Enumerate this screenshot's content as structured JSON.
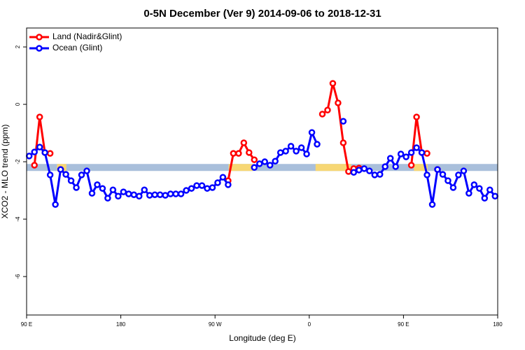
{
  "chart_data": {
    "type": "line",
    "title": "0-5N December (Ver 9)   2014-09-06 to 2018-12-31",
    "x_label": "Longitude (deg E)",
    "y_label": "XCO2 - MLO trend (ppm)",
    "x": [
      92.5,
      97.5,
      102.5,
      107.5,
      112.5,
      117.5,
      122.5,
      127.5,
      132.5,
      137.5,
      142.5,
      147.5,
      152.5,
      157.5,
      162.5,
      167.5,
      172.5,
      177.5,
      182.5,
      187.5,
      192.5,
      197.5,
      202.5,
      207.5,
      212.5,
      217.5,
      222.5,
      227.5,
      232.5,
      237.5,
      242.5,
      247.5,
      252.5,
      257.5,
      262.5,
      267.5,
      272.5,
      277.5,
      282.5,
      287.5,
      292.5,
      297.5,
      302.5,
      307.5,
      312.5,
      317.5,
      322.5,
      327.5,
      332.5,
      337.5,
      342.5,
      347.5,
      352.5,
      357.5,
      362.5,
      367.5,
      372.5,
      377.5,
      382.5,
      387.5,
      392.5,
      397.5,
      402.5,
      407.5,
      412.5,
      417.5,
      422.5,
      427.5,
      432.5,
      437.5,
      442.5,
      447.5,
      452.5,
      457.5,
      462.5,
      467.5,
      472.5,
      477.5,
      482.5,
      487.5,
      492.5,
      497.5,
      502.5,
      507.5,
      512.5,
      517.5,
      522.5,
      527.5,
      532.5,
      537.5
    ],
    "series": [
      {
        "name": "Land (Nadir&Glint)",
        "color": "#ff0000",
        "values": [
          null,
          -2.12,
          -0.44,
          -1.68,
          -1.71,
          null,
          -2.27,
          null,
          null,
          null,
          null,
          null,
          null,
          null,
          null,
          null,
          null,
          null,
          null,
          null,
          null,
          null,
          null,
          null,
          null,
          null,
          null,
          null,
          null,
          null,
          null,
          null,
          null,
          null,
          null,
          null,
          null,
          null,
          -2.66,
          -1.71,
          -1.71,
          -1.34,
          -1.68,
          -1.93,
          null,
          null,
          null,
          null,
          null,
          null,
          null,
          null,
          null,
          null,
          null,
          null,
          -0.34,
          -0.2,
          0.73,
          0.05,
          -1.34,
          -2.34,
          -2.24,
          -2.22,
          null,
          null,
          null,
          null,
          null,
          null,
          null,
          null,
          null,
          -2.12,
          -0.44,
          -1.68,
          -1.71,
          null,
          -2.27,
          null,
          null,
          null,
          null,
          null,
          null,
          null,
          null,
          null,
          null,
          null
        ]
      },
      {
        "name": "Ocean (Glint)",
        "color": "#0000ff",
        "values": [
          -1.8,
          -1.66,
          -1.49,
          -1.68,
          -2.46,
          -3.49,
          -2.27,
          -2.44,
          -2.66,
          -2.9,
          -2.46,
          -2.32,
          -3.1,
          -2.8,
          -2.93,
          -3.27,
          -2.98,
          -3.2,
          -3.05,
          -3.12,
          -3.15,
          -3.2,
          -2.98,
          -3.17,
          -3.15,
          -3.15,
          -3.17,
          -3.12,
          -3.12,
          -3.12,
          -3.0,
          -2.93,
          -2.83,
          -2.83,
          -2.93,
          -2.9,
          -2.73,
          -2.54,
          -2.8,
          null,
          null,
          null,
          null,
          -2.2,
          -2.07,
          -2.0,
          -2.12,
          -1.98,
          -1.68,
          -1.63,
          -1.46,
          -1.63,
          -1.51,
          -1.73,
          -0.98,
          -1.39,
          null,
          null,
          null,
          null,
          -0.59,
          null,
          -2.37,
          -2.29,
          -2.24,
          -2.32,
          -2.46,
          -2.44,
          -2.17,
          -1.88,
          -2.17,
          -1.73,
          -1.83,
          -1.68,
          -1.51,
          -1.68,
          -2.46,
          -3.49,
          -2.27,
          -2.44,
          -2.66,
          -2.9,
          -2.46,
          -2.32,
          -3.1,
          -2.8,
          -2.93,
          -3.27,
          -2.98,
          -3.2
        ]
      }
    ],
    "surface_mask": {
      "y": -2.2,
      "color": "#a9bfdb",
      "segments": [
        {
          "from": 119,
          "to": 128,
          "color": "#f7d774"
        },
        {
          "from": 283,
          "to": 306,
          "color": "#f7d774"
        },
        {
          "from": 366,
          "to": 400,
          "color": "#f7d774"
        },
        {
          "from": 460,
          "to": 473,
          "color": "#f7d774"
        }
      ]
    },
    "xlim": [
      90,
      540
    ],
    "xticks": [
      {
        "value": 90,
        "label": "90 E"
      },
      180,
      {
        "value": 270,
        "label": "90 W"
      },
      {
        "value": 360,
        "label": "0"
      },
      {
        "value": 450,
        "label": "90 E"
      },
      {
        "value": 540,
        "label": "180"
      }
    ],
    "ylim": [
      -7.34,
      2.66
    ],
    "yticks": [
      2,
      0,
      -2,
      -4,
      -6
    ],
    "legend": "topleft"
  }
}
